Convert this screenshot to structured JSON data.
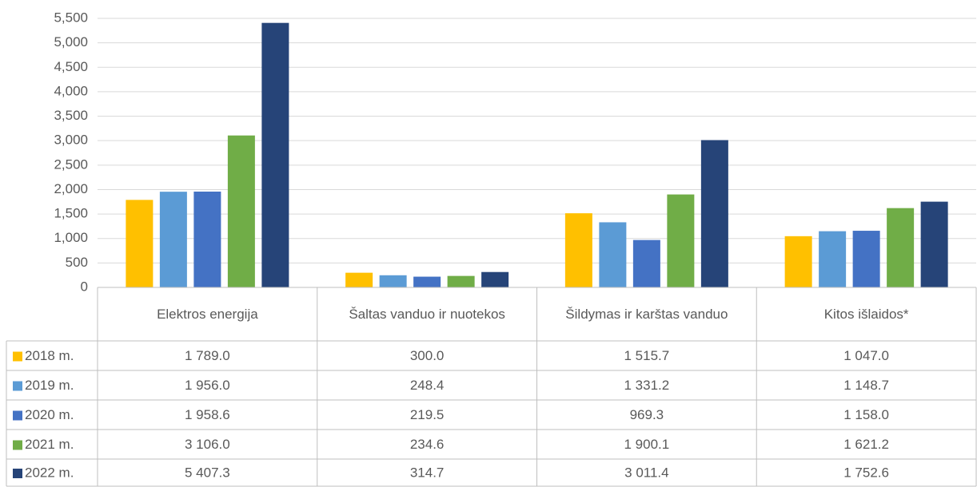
{
  "chart_data": {
    "type": "bar",
    "categories": [
      "Elektros energija",
      "Šaltas vanduo ir nuotekos",
      "Šildymas ir karštas vanduo",
      "Kitos išlaidos*"
    ],
    "series": [
      {
        "name": "2018 m.",
        "color": "#ffc000",
        "values": [
          1789.0,
          300.0,
          1515.7,
          1047.0
        ],
        "value_labels": [
          "1 789.0",
          "300.0",
          "1 515.7",
          "1 047.0"
        ]
      },
      {
        "name": "2019 m.",
        "color": "#5b9bd5",
        "values": [
          1956.0,
          248.4,
          1331.2,
          1148.7
        ],
        "value_labels": [
          "1 956.0",
          "248.4",
          "1 331.2",
          "1 148.7"
        ]
      },
      {
        "name": "2020 m.",
        "color": "#4472c4",
        "values": [
          1958.6,
          219.5,
          969.3,
          1158.0
        ],
        "value_labels": [
          "1 958.6",
          "219.5",
          "969.3",
          "1 158.0"
        ]
      },
      {
        "name": "2021 m.",
        "color": "#70ad47",
        "values": [
          3106.0,
          234.6,
          1900.1,
          1621.2
        ],
        "value_labels": [
          "3 106.0",
          "234.6",
          "1 900.1",
          "1 621.2"
        ]
      },
      {
        "name": "2022 m.",
        "color": "#264478",
        "values": [
          5407.3,
          314.7,
          3011.4,
          1752.6
        ],
        "value_labels": [
          "5 407.3",
          "314.7",
          "3 011.4",
          "1 752.6"
        ]
      }
    ],
    "ylim": [
      0,
      5500
    ],
    "yticks": [
      0,
      500,
      {
        "value": 1000,
        "label": "1,000"
      },
      {
        "value": 1500,
        "label": "1,500"
      },
      {
        "value": 2000,
        "label": "2,000"
      },
      {
        "value": 2500,
        "label": "2,500"
      },
      {
        "value": 3000,
        "label": "3,000"
      },
      {
        "value": 3500,
        "label": "3,500"
      },
      {
        "value": 4000,
        "label": "4,000"
      },
      {
        "value": 4500,
        "label": "4,500"
      },
      {
        "value": 5000,
        "label": "5,000"
      },
      {
        "value": 5500,
        "label": "5,500"
      }
    ],
    "grid": true
  }
}
